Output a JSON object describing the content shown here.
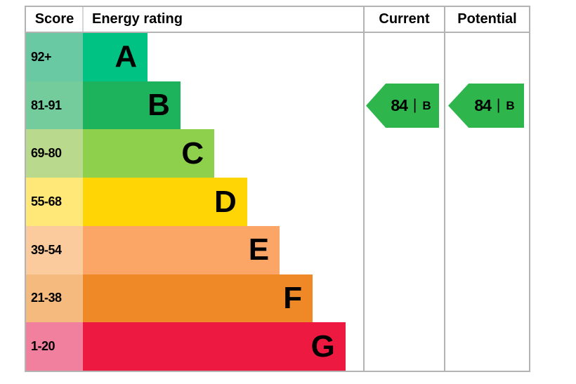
{
  "table": {
    "headers": {
      "score": "Score",
      "energy_rating": "Energy rating",
      "current": "Current",
      "potential": "Potential"
    },
    "border_color": "#b3b3b3"
  },
  "chart_data": {
    "type": "bar",
    "subtype": "epc_energy_rating_stepped_bands",
    "title": "Energy rating",
    "columns": [
      "Score",
      "Energy rating",
      "Current",
      "Potential"
    ],
    "bands": [
      {
        "score_range": "92+",
        "letter": "A",
        "band_color": "#00c282",
        "score_bg_color": "#68c9a3",
        "bar_width_pct": 23.1
      },
      {
        "score_range": "81-91",
        "letter": "B",
        "band_color": "#1db35c",
        "score_bg_color": "#74cb9b",
        "bar_width_pct": 34.8
      },
      {
        "score_range": "69-80",
        "letter": "C",
        "band_color": "#8ed04b",
        "score_bg_color": "#b9da8c",
        "bar_width_pct": 46.9
      },
      {
        "score_range": "55-68",
        "letter": "D",
        "band_color": "#ffd505",
        "score_bg_color": "#ffe878",
        "bar_width_pct": 58.6
      },
      {
        "score_range": "39-54",
        "letter": "E",
        "band_color": "#fba567",
        "score_bg_color": "#fbcb9d",
        "bar_width_pct": 70.2
      },
      {
        "score_range": "21-38",
        "letter": "F",
        "band_color": "#ef8826",
        "score_bg_color": "#f5ba7d",
        "bar_width_pct": 82.0
      },
      {
        "score_range": "1-20",
        "letter": "G",
        "band_color": "#ed1940",
        "score_bg_color": "#f0809d",
        "bar_width_pct": 93.7
      }
    ],
    "current": {
      "value": "84",
      "separator": "|",
      "band": "B",
      "arrow_color": "#2eb64d",
      "band_row_index": 1
    },
    "potential": {
      "value": "84",
      "separator": "|",
      "band": "B",
      "arrow_color": "#2eb64d",
      "band_row_index": 1
    }
  }
}
